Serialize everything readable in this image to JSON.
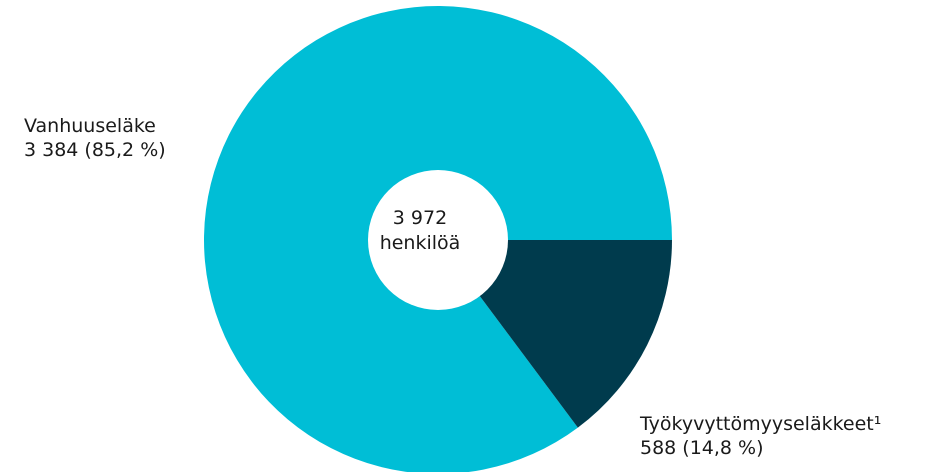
{
  "chart_data": {
    "type": "pie",
    "donut": true,
    "center_label": {
      "line1": "3 972",
      "line2": "henkilöä"
    },
    "total": 3972,
    "slices": [
      {
        "name": "Vanhuuseläke",
        "value": 3384,
        "percent": 85.2,
        "value_text": "3 384 (85,2 %)",
        "color": "#00BED6"
      },
      {
        "name": "Työkyvyttömyyseläkkeet¹",
        "value": 588,
        "percent": 14.8,
        "value_text": "588 (14,8 %)",
        "color": "#003B4D"
      }
    ]
  }
}
